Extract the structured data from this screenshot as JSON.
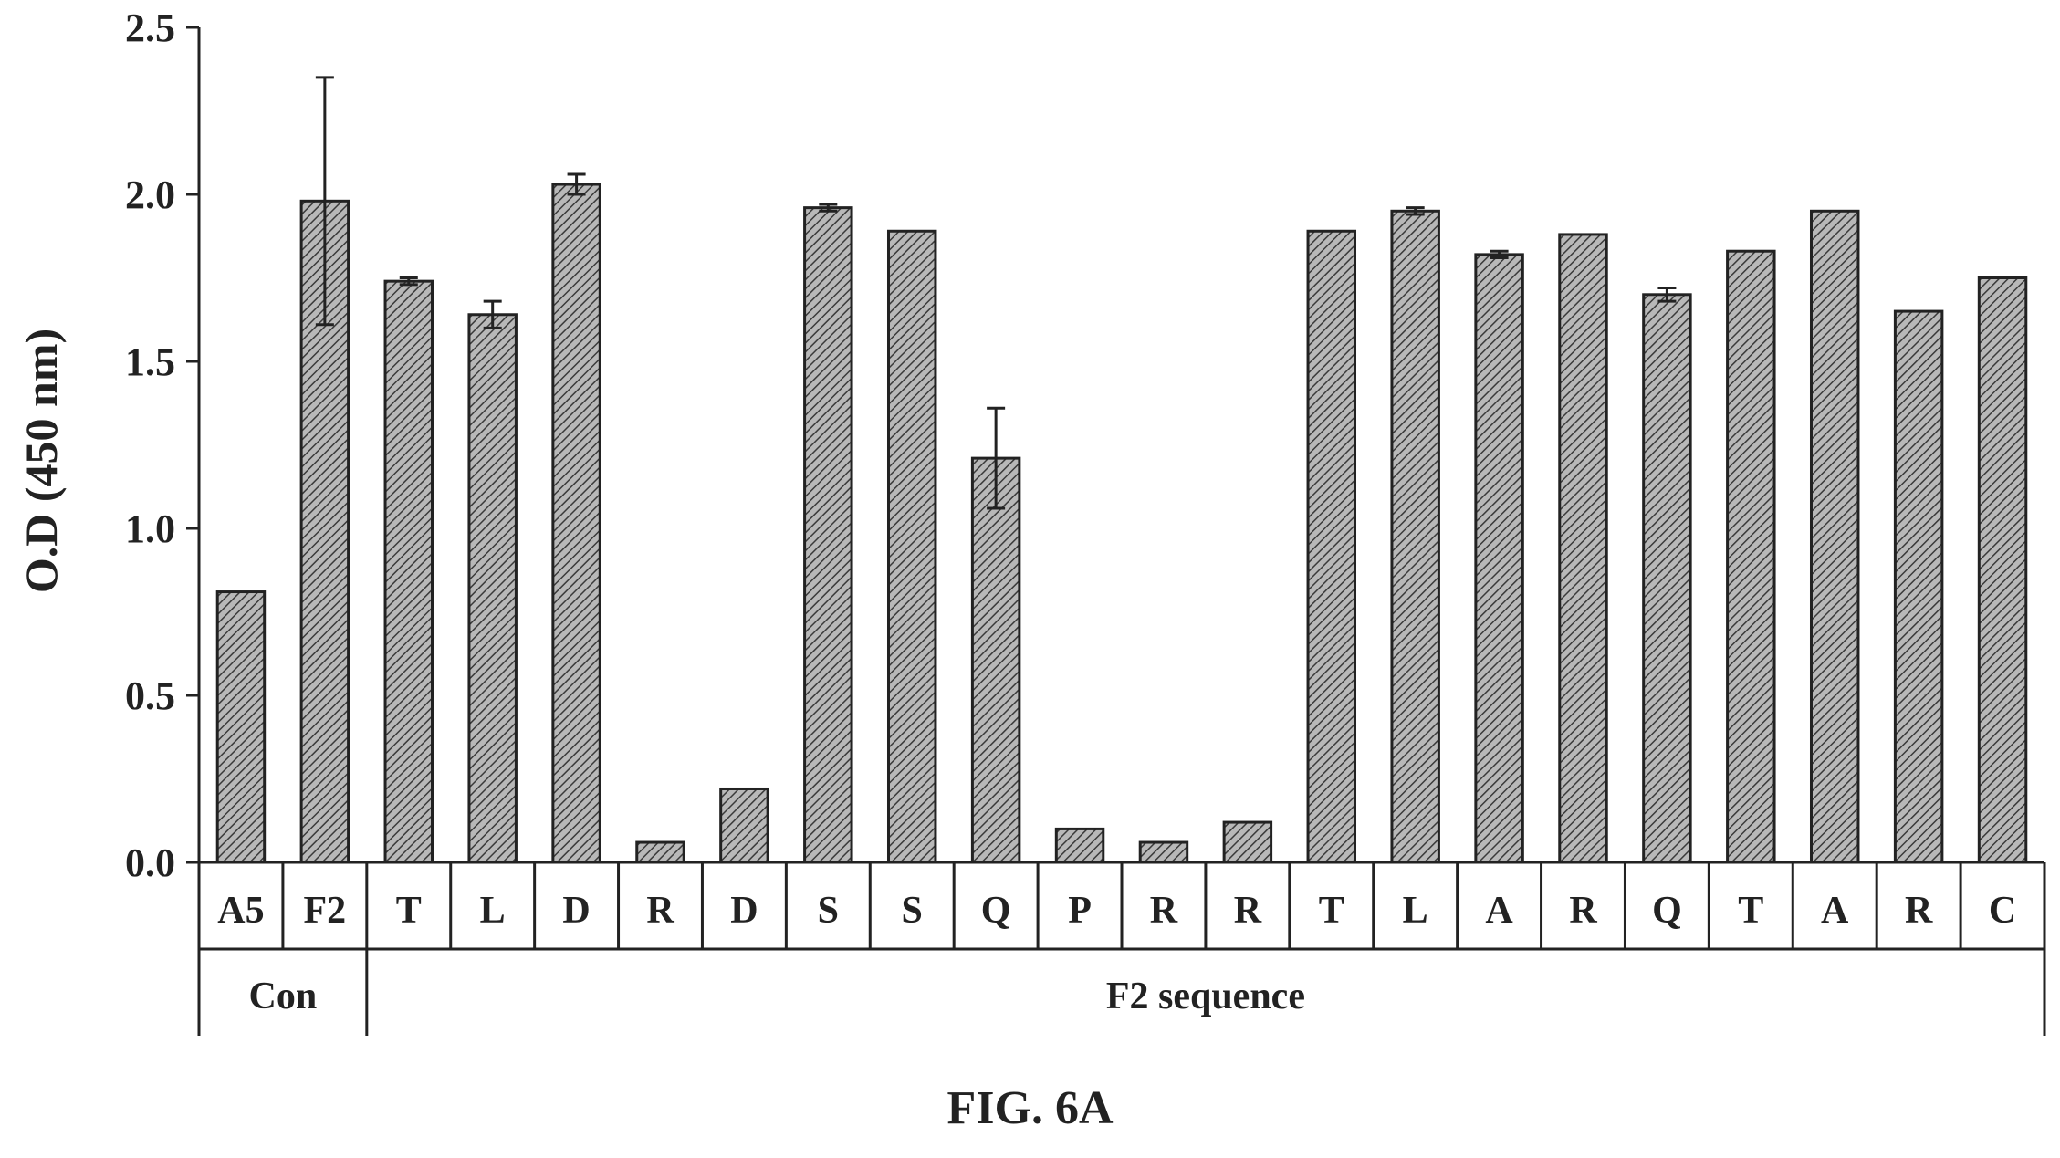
{
  "chart_data": {
    "type": "bar",
    "ylabel": "O.D (450 nm)",
    "xlabel": "",
    "ylim": [
      0,
      2.5
    ],
    "yticks": [
      "0.0",
      "0.5",
      "1.0",
      "1.5",
      "2.0",
      "2.5"
    ],
    "categories": [
      "A5",
      "F2",
      "T",
      "L",
      "D",
      "R",
      "D",
      "S",
      "S",
      "Q",
      "P",
      "R",
      "R",
      "T",
      "L",
      "A",
      "R",
      "Q",
      "T",
      "A",
      "R",
      "C"
    ],
    "values": [
      0.81,
      1.98,
      1.74,
      1.64,
      2.03,
      0.06,
      0.22,
      1.96,
      1.89,
      1.21,
      0.1,
      0.06,
      0.12,
      1.89,
      1.95,
      1.82,
      1.88,
      1.7,
      1.83,
      1.95,
      1.65,
      1.75
    ],
    "errors": [
      0,
      0.37,
      0.01,
      0.04,
      0.03,
      0,
      0,
      0.01,
      0,
      0.15,
      0,
      0,
      0,
      0,
      0.01,
      0.01,
      0,
      0.02,
      0,
      0,
      0,
      0
    ],
    "groups": [
      {
        "label": "Con",
        "start": 0,
        "end": 1
      },
      {
        "label": "F2 sequence",
        "start": 2,
        "end": 21
      }
    ],
    "bar_fill": "#9a9a9a",
    "grid": false,
    "legend": "none"
  },
  "caption": "FIG. 6A"
}
